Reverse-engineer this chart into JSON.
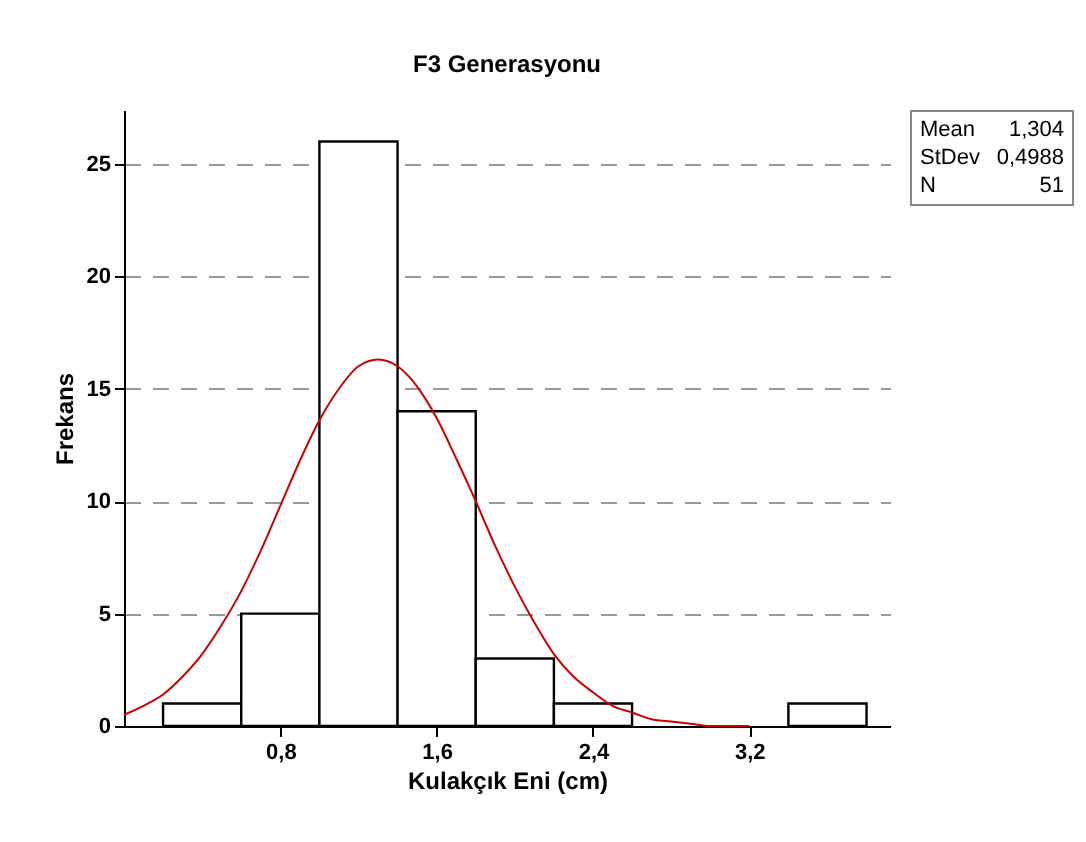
{
  "chart_data": {
    "type": "histogram",
    "title": "F3 Generasyonu",
    "xlabel": "Kulakçık Eni (cm)",
    "ylabel": "Frekans",
    "xlim": [
      0,
      3.92
    ],
    "ylim": [
      0,
      27.4
    ],
    "xticks": [
      {
        "value": 0.8,
        "label": "0,8"
      },
      {
        "value": 1.6,
        "label": "1,6"
      },
      {
        "value": 2.4,
        "label": "2,4"
      },
      {
        "value": 3.2,
        "label": "3,2"
      }
    ],
    "yticks": [
      0,
      5,
      10,
      15,
      20,
      25
    ],
    "grid": "y",
    "series": [
      {
        "color": "#ffffff",
        "bins": [
          0.2,
          0.6,
          1.0,
          1.4,
          1.8,
          2.2,
          2.6,
          3.0,
          3.4,
          3.8
        ],
        "values": [
          1,
          5,
          26,
          14,
          3,
          1,
          0,
          0,
          1
        ]
      },
      {
        "type": "line",
        "color": "#cc0000",
        "x": [
          0,
          0.1,
          0.2,
          0.3,
          0.4,
          0.5,
          0.6,
          0.7,
          0.8,
          0.9,
          1.0,
          1.1,
          1.2,
          1.3,
          1.4,
          1.5,
          1.6,
          1.7,
          1.8,
          1.9,
          2.0,
          2.1,
          2.2,
          2.3,
          2.4,
          2.5,
          2.6,
          2.7,
          2.8,
          2.9,
          3.0,
          3.2
        ],
        "values": [
          0.5,
          0.9,
          1.4,
          2.2,
          3.2,
          4.5,
          6,
          7.8,
          9.8,
          11.8,
          13.6,
          15,
          16,
          16.3,
          16,
          15.1,
          13.7,
          11.9,
          10,
          8,
          6.2,
          4.6,
          3.2,
          2.2,
          1.5,
          0.9,
          0.6,
          0.3,
          0.2,
          0.1,
          0,
          0
        ]
      }
    ],
    "annotations": [
      "Mean 1,304",
      "StDev 0,4988",
      "N 51"
    ]
  }
}
